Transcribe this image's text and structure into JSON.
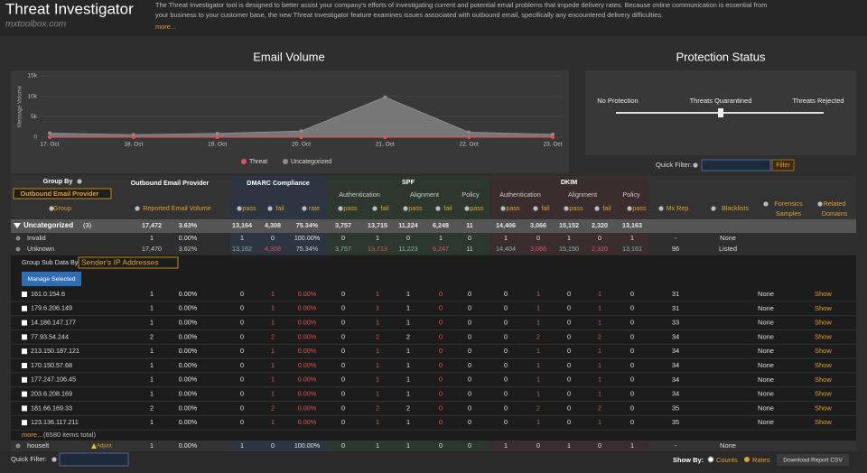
{
  "header": {
    "title": "Threat Investigator",
    "site": "mxtoolbox.com",
    "description": [
      "The Threat Investigator tool is designed to better assist your company's efforts of investigating current and potential email problems that impede delivery rates. Because online communication is essential from",
      "your business to your customer base, the new Threat Investigator feature examines issues associated with outbound email, specifically any encountered delivery difficulties."
    ],
    "more": "more..."
  },
  "chart_data": {
    "type": "area",
    "title": "Email Volume",
    "y_label": "Message Volume",
    "x": [
      "17. Oct",
      "18. Oct",
      "19. Oct",
      "20. Oct",
      "21. Oct",
      "22. Oct",
      "23. Oct"
    ],
    "series": [
      {
        "name": "Threat",
        "color": "#e0525b",
        "values": [
          0,
          0,
          0,
          0,
          0,
          0,
          0
        ]
      },
      {
        "name": "Uncategorized",
        "color": "#8c8c8c",
        "values": [
          1000,
          600,
          900,
          1500,
          9800,
          1200,
          700
        ]
      }
    ],
    "ylim": [
      0,
      15000
    ],
    "yticks": [
      0,
      {
        "value": 5000,
        "label": "5k"
      },
      {
        "value": 10000,
        "label": "10k"
      },
      {
        "value": 15000,
        "label": "15k"
      }
    ],
    "grid": true
  },
  "protection": {
    "title": "Protection Status",
    "levels": [
      "No Protection",
      "Threats Quarantined",
      "Threats Rejected"
    ],
    "quick_filter": "Quick Filter:",
    "filter": "Filter"
  },
  "table": {
    "header": {
      "group_by": "Group By",
      "group_select": "Outbound Email Provider",
      "group": "Group",
      "provider": "Outbound Email Provider",
      "volume": "Reported Email Volume",
      "dmarc": "DMARC Compliance",
      "spf": "SPF",
      "dkim": "DKIM",
      "auth": "Authentication",
      "align": "Alignment",
      "policy": "Policy",
      "pass": "pass",
      "fail": "fail",
      "rate": "rate",
      "mx": "Mx Rep",
      "blacklists": "Blacklists",
      "forensics": [
        "Forensics",
        "Samples"
      ],
      "related": [
        "Related",
        "Domains"
      ]
    },
    "summary": {
      "label": "Uncategorized",
      "count": "(3)",
      "cells": [
        "17,472",
        "3.63%",
        "13,164",
        "4,308",
        "75.34%",
        "3,757",
        "13,715",
        "11,224",
        "6,248",
        "11",
        "14,406",
        "3,066",
        "15,152",
        "2,320",
        "13,163"
      ]
    },
    "groups": [
      {
        "label": "Invalid",
        "cells": [
          "1",
          "0.00%",
          "1",
          "0",
          "100.00%",
          "0",
          "1",
          "0",
          "1",
          "0",
          "1",
          "0",
          "1",
          "0",
          "1"
        ],
        "mx": "-",
        "blacklists": "None"
      },
      {
        "label": "Unknown",
        "cells": [
          "17,470",
          "3.62%",
          "13,162",
          "4,308",
          "75.34%",
          "3,757",
          "13,713",
          "11,223",
          "6,247",
          "11",
          "14,404",
          "3,066",
          "15,150",
          "2,320",
          "13,161"
        ],
        "mx": "96",
        "blacklists": "Listed"
      }
    ],
    "sub": {
      "label": "Group Sub Data By:",
      "select": "Sender's IP Addresses",
      "button": "Manage Selected",
      "more": "more...",
      "total": "(6580 items total)",
      "rows": [
        {
          "ip": "161.0.154.6",
          "cells": [
            "1",
            "0.00%",
            "0",
            "1",
            "0.00%",
            "0",
            "1",
            "1",
            "0",
            "0",
            "0",
            "1",
            "0",
            "1",
            "0"
          ],
          "mx": "31",
          "forensics": "None",
          "related": "Show"
        },
        {
          "ip": "179.6.206.149",
          "cells": [
            "1",
            "0.00%",
            "0",
            "1",
            "0.00%",
            "0",
            "1",
            "1",
            "0",
            "0",
            "0",
            "1",
            "0",
            "1",
            "0"
          ],
          "mx": "31",
          "forensics": "None",
          "related": "Show"
        },
        {
          "ip": "14.186.147.177",
          "cells": [
            "1",
            "0.00%",
            "0",
            "1",
            "0.00%",
            "0",
            "1",
            "1",
            "0",
            "0",
            "0",
            "1",
            "0",
            "1",
            "0"
          ],
          "mx": "33",
          "forensics": "None",
          "related": "Show"
        },
        {
          "ip": "77.93.54.244",
          "cells": [
            "2",
            "0.00%",
            "0",
            "2",
            "0.00%",
            "0",
            "2",
            "2",
            "0",
            "0",
            "0",
            "2",
            "0",
            "2",
            "0"
          ],
          "mx": "34",
          "forensics": "None",
          "related": "Show"
        },
        {
          "ip": "213.150.187.121",
          "cells": [
            "1",
            "0.00%",
            "0",
            "1",
            "0.00%",
            "0",
            "1",
            "1",
            "0",
            "0",
            "0",
            "1",
            "0",
            "1",
            "0"
          ],
          "mx": "34",
          "forensics": "None",
          "related": "Show"
        },
        {
          "ip": "170.150.57.68",
          "cells": [
            "1",
            "0.00%",
            "0",
            "1",
            "0.00%",
            "0",
            "1",
            "1",
            "0",
            "0",
            "0",
            "1",
            "0",
            "1",
            "0"
          ],
          "mx": "34",
          "forensics": "None",
          "related": "Show"
        },
        {
          "ip": "177.247.106.45",
          "cells": [
            "1",
            "0.00%",
            "0",
            "1",
            "0.00%",
            "0",
            "1",
            "1",
            "0",
            "0",
            "0",
            "1",
            "0",
            "1",
            "0"
          ],
          "mx": "34",
          "forensics": "None",
          "related": "Show"
        },
        {
          "ip": "203.6.208.169",
          "cells": [
            "1",
            "0.00%",
            "0",
            "1",
            "0.00%",
            "0",
            "1",
            "1",
            "0",
            "0",
            "0",
            "1",
            "0",
            "1",
            "0"
          ],
          "mx": "34",
          "forensics": "None",
          "related": "Show"
        },
        {
          "ip": "181.66.169.33",
          "cells": [
            "2",
            "0.00%",
            "0",
            "2",
            "0.00%",
            "0",
            "2",
            "2",
            "0",
            "0",
            "0",
            "2",
            "0",
            "2",
            "0"
          ],
          "mx": "35",
          "forensics": "None",
          "related": "Show"
        },
        {
          "ip": "123.136.117.211",
          "cells": [
            "1",
            "0.00%",
            "0",
            "1",
            "0.00%",
            "0",
            "1",
            "1",
            "0",
            "0",
            "0",
            "1",
            "0",
            "1",
            "0"
          ],
          "mx": "35",
          "forensics": "None",
          "related": "Show"
        }
      ]
    },
    "last": {
      "label": "houselt",
      "tag": "Adjust",
      "cells": [
        "1",
        "0.00%",
        "1",
        "0",
        "100.00%",
        "0",
        "1",
        "1",
        "0",
        "0",
        "1",
        "0",
        "1",
        "0",
        "1"
      ],
      "mx": "-",
      "blacklists": "None"
    }
  },
  "footer": {
    "quick_filter": "Quick Filter:",
    "show_by": "Show By:",
    "counts": "Counts",
    "rates": "Rates",
    "download": "Download Report CSV"
  }
}
